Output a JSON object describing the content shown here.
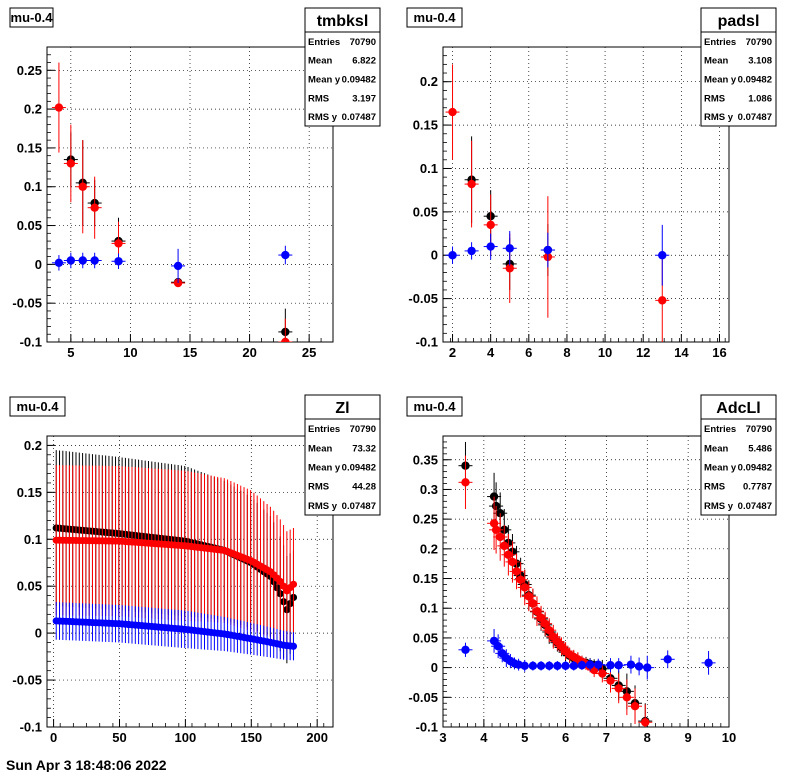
{
  "footer_text": "Sun Apr 3 18:48:06 2022",
  "colors": {
    "black": "#000000",
    "red": "#ff0000",
    "blue": "#0000ff",
    "grid": "#000000"
  },
  "chart_data": [
    {
      "type": "scatter",
      "title": "mu-0.4",
      "stats_name": "tmbksl",
      "stats": [
        {
          "label": "Entries",
          "value": "70790"
        },
        {
          "label": "Mean",
          "value": "6.822"
        },
        {
          "label": "Mean y",
          "value": "0.09482"
        },
        {
          "label": "RMS",
          "value": "3.197"
        },
        {
          "label": "RMS y",
          "value": "0.07487"
        }
      ],
      "xlim": [
        3,
        27
      ],
      "ylim": [
        -0.1,
        0.28
      ],
      "xticks": [
        5,
        10,
        15,
        20,
        25
      ],
      "yticks": [
        -0.1,
        -0.05,
        0,
        0.05,
        0.1,
        0.15,
        0.2,
        0.25
      ],
      "ytick_labels": [
        "-0.1",
        "-0.05",
        "0",
        "0.05",
        "0.1",
        "0.15",
        "0.2",
        "0.25"
      ],
      "grid": true,
      "series": [
        {
          "color": "black",
          "x": [
            5,
            6,
            7,
            9,
            14,
            23
          ],
          "y": [
            0.135,
            0.105,
            0.079,
            0.03,
            -0.023,
            -0.087
          ],
          "err": [
            0.035,
            0.055,
            0.03,
            0.03,
            0.005,
            0.03
          ]
        },
        {
          "color": "red",
          "x": [
            4,
            5,
            6,
            7,
            9,
            14,
            23
          ],
          "y": [
            0.202,
            0.13,
            0.1,
            0.073,
            0.027,
            -0.024,
            -0.1
          ],
          "err": [
            0.058,
            0.05,
            0.06,
            0.04,
            0.028,
            0.005,
            0.03
          ]
        },
        {
          "color": "blue",
          "x": [
            4,
            5,
            6,
            7,
            9,
            14,
            23
          ],
          "y": [
            0.002,
            0.005,
            0.005,
            0.005,
            0.004,
            -0.002,
            0.012
          ],
          "err": [
            0.01,
            0.01,
            0.01,
            0.01,
            0.01,
            0.022,
            0.012
          ]
        }
      ]
    },
    {
      "type": "scatter",
      "title": "mu-0.4",
      "stats_name": "padsl",
      "stats": [
        {
          "label": "Entries",
          "value": "70790"
        },
        {
          "label": "Mean",
          "value": "3.108"
        },
        {
          "label": "Mean y",
          "value": "0.09482"
        },
        {
          "label": "RMS",
          "value": "1.086"
        },
        {
          "label": "RMS y",
          "value": "0.07487"
        }
      ],
      "xlim": [
        1.5,
        16.5
      ],
      "ylim": [
        -0.1,
        0.24
      ],
      "xticks": [
        2,
        4,
        6,
        8,
        10,
        12,
        14,
        16
      ],
      "yticks": [
        -0.1,
        -0.05,
        0,
        0.05,
        0.1,
        0.15,
        0.2
      ],
      "ytick_labels": [
        "-0.1",
        "-0.05",
        "0",
        "0.05",
        "0.1",
        "0.15",
        "0.2"
      ],
      "grid": true,
      "series": [
        {
          "color": "black",
          "x": [
            3,
            4,
            5,
            7
          ],
          "y": [
            0.087,
            0.045,
            -0.01,
            0.006
          ],
          "err": [
            0.05,
            0.03,
            0.03,
            0.03
          ]
        },
        {
          "color": "red",
          "x": [
            2,
            3,
            4,
            5,
            7,
            13
          ],
          "y": [
            0.165,
            0.082,
            0.035,
            -0.015,
            -0.002,
            -0.052
          ],
          "err": [
            0.055,
            0.05,
            0.035,
            0.04,
            0.07,
            0.05
          ]
        },
        {
          "color": "blue",
          "x": [
            2,
            3,
            4,
            5,
            7,
            13
          ],
          "y": [
            0.0,
            0.005,
            0.01,
            0.008,
            0.006,
            0.0
          ],
          "err": [
            0.01,
            0.01,
            0.015,
            0.02,
            0.02,
            0.035
          ]
        }
      ]
    },
    {
      "type": "scatter",
      "title": "mu-0.4",
      "stats_name": "Zl",
      "stats": [
        {
          "label": "Entries",
          "value": "70790"
        },
        {
          "label": "Mean",
          "value": "73.32"
        },
        {
          "label": "Mean y",
          "value": "0.09482"
        },
        {
          "label": "RMS",
          "value": "44.28"
        },
        {
          "label": "RMS y",
          "value": "0.07487"
        }
      ],
      "xlim": [
        -5,
        212
      ],
      "ylim": [
        -0.1,
        0.21
      ],
      "xticks": [
        0,
        50,
        100,
        150,
        200
      ],
      "yticks": [
        -0.1,
        -0.05,
        0,
        0.05,
        0.1,
        0.15,
        0.2
      ],
      "ytick_labels": [
        "-0.1",
        "-0.05",
        "0",
        "0.05",
        "0.1",
        "0.15",
        "0.2"
      ],
      "grid": true,
      "dense": true,
      "series": [
        {
          "color": "black",
          "curve": [
            [
              2,
              0.112
            ],
            [
              50,
              0.106
            ],
            [
              100,
              0.098
            ],
            [
              130,
              0.088
            ],
            [
              150,
              0.075
            ],
            [
              165,
              0.06
            ],
            [
              172,
              0.042
            ],
            [
              177,
              0.025
            ],
            [
              182,
              0.038
            ]
          ],
          "errcurve": [
            [
              2,
              0.083
            ],
            [
              100,
              0.08
            ],
            [
              150,
              0.07
            ],
            [
              175,
              0.06
            ],
            [
              182,
              0.05
            ]
          ],
          "xstep": 2.5
        },
        {
          "color": "red",
          "curve": [
            [
              2,
              0.099
            ],
            [
              50,
              0.098
            ],
            [
              100,
              0.093
            ],
            [
              130,
              0.088
            ],
            [
              150,
              0.077
            ],
            [
              165,
              0.065
            ],
            [
              172,
              0.055
            ],
            [
              177,
              0.045
            ],
            [
              182,
              0.052
            ]
          ],
          "errcurve": [
            [
              2,
              0.08
            ],
            [
              100,
              0.08
            ],
            [
              150,
              0.075
            ],
            [
              175,
              0.065
            ],
            [
              182,
              0.06
            ]
          ],
          "xstep": 2.5
        },
        {
          "color": "blue",
          "curve": [
            [
              2,
              0.013
            ],
            [
              50,
              0.01
            ],
            [
              100,
              0.004
            ],
            [
              130,
              -0.001
            ],
            [
              150,
              -0.006
            ],
            [
              165,
              -0.01
            ],
            [
              175,
              -0.013
            ],
            [
              182,
              -0.014
            ]
          ],
          "errcurve": [
            [
              2,
              0.02
            ],
            [
              100,
              0.02
            ],
            [
              182,
              0.015
            ]
          ],
          "xstep": 2.5
        }
      ]
    },
    {
      "type": "scatter",
      "title": "mu-0.4",
      "stats_name": "AdcLl",
      "stats": [
        {
          "label": "Entries",
          "value": "70790"
        },
        {
          "label": "Mean",
          "value": "5.486"
        },
        {
          "label": "Mean y",
          "value": "0.09482"
        },
        {
          "label": "RMS",
          "value": "0.7787"
        },
        {
          "label": "RMS y",
          "value": "0.07487"
        }
      ],
      "xlim": [
        3,
        10
      ],
      "ylim": [
        -0.1,
        0.39
      ],
      "xticks": [
        3,
        4,
        5,
        6,
        7,
        8,
        9,
        10
      ],
      "yticks": [
        -0.1,
        -0.05,
        0,
        0.05,
        0.1,
        0.15,
        0.2,
        0.25,
        0.3,
        0.35
      ],
      "ytick_labels": [
        "-0.1",
        "-0.05",
        "0",
        "0.05",
        "0.1",
        "0.15",
        "0.2",
        "0.25",
        "0.3",
        "0.35"
      ],
      "grid": true,
      "series": [
        {
          "color": "black",
          "x": [
            3.55,
            4.25,
            4.3,
            4.4,
            4.5,
            4.6,
            4.7,
            4.8,
            4.9,
            5.0,
            5.1,
            5.2,
            5.3,
            5.4,
            5.5,
            5.6,
            5.7,
            5.8,
            5.9,
            6.0,
            6.1,
            6.2,
            6.3,
            6.4,
            6.5,
            6.6,
            6.7,
            6.9,
            7.1,
            7.3,
            7.5,
            7.7,
            7.95
          ],
          "y": [
            0.34,
            0.288,
            0.272,
            0.26,
            0.232,
            0.21,
            0.195,
            0.175,
            0.155,
            0.14,
            0.122,
            0.108,
            0.094,
            0.082,
            0.072,
            0.06,
            0.05,
            0.042,
            0.034,
            0.026,
            0.02,
            0.016,
            0.012,
            0.01,
            0.008,
            0.006,
            0.004,
            -0.002,
            -0.018,
            -0.03,
            -0.04,
            -0.06,
            -0.09
          ],
          "err": [
            0.04,
            0.04,
            0.04,
            0.035,
            0.035,
            0.03,
            0.03,
            0.03,
            0.03,
            0.025,
            0.025,
            0.025,
            0.02,
            0.02,
            0.02,
            0.02,
            0.015,
            0.015,
            0.015,
            0.015,
            0.012,
            0.012,
            0.012,
            0.01,
            0.01,
            0.01,
            0.01,
            0.015,
            0.02,
            0.025,
            0.03,
            0.03,
            0.03
          ]
        },
        {
          "color": "red",
          "x": [
            3.55,
            4.25,
            4.3,
            4.4,
            4.5,
            4.6,
            4.7,
            4.8,
            4.9,
            5.0,
            5.1,
            5.2,
            5.3,
            5.4,
            5.5,
            5.6,
            5.7,
            5.8,
            5.9,
            6.0,
            6.1,
            6.2,
            6.3,
            6.4,
            6.5,
            6.6,
            6.7,
            6.9,
            7.1,
            7.3,
            7.5,
            7.7,
            7.95
          ],
          "y": [
            0.312,
            0.243,
            0.232,
            0.22,
            0.205,
            0.19,
            0.178,
            0.162,
            0.148,
            0.135,
            0.12,
            0.108,
            0.095,
            0.084,
            0.074,
            0.063,
            0.052,
            0.044,
            0.036,
            0.028,
            0.022,
            0.018,
            0.014,
            0.01,
            0.006,
            0.002,
            -0.004,
            -0.01,
            -0.022,
            -0.035,
            -0.05,
            -0.065,
            -0.092
          ],
          "err": [
            0.045,
            0.045,
            0.04,
            0.04,
            0.035,
            0.035,
            0.035,
            0.03,
            0.03,
            0.03,
            0.025,
            0.025,
            0.025,
            0.02,
            0.02,
            0.02,
            0.02,
            0.015,
            0.015,
            0.015,
            0.012,
            0.012,
            0.012,
            0.01,
            0.01,
            0.01,
            0.012,
            0.015,
            0.02,
            0.025,
            0.03,
            0.03,
            0.03
          ]
        },
        {
          "color": "blue",
          "x": [
            3.55,
            4.25,
            4.35,
            4.45,
            4.55,
            4.65,
            4.75,
            4.85,
            5.0,
            5.2,
            5.4,
            5.6,
            5.8,
            6.0,
            6.2,
            6.4,
            6.6,
            6.8,
            7.1,
            7.3,
            7.6,
            7.8,
            8.0,
            8.5,
            9.5
          ],
          "y": [
            0.03,
            0.045,
            0.036,
            0.024,
            0.016,
            0.011,
            0.007,
            0.005,
            0.003,
            0.003,
            0.003,
            0.003,
            0.003,
            0.003,
            0.003,
            0.004,
            0.005,
            0.005,
            0.004,
            0.004,
            0.005,
            0.002,
            0.0,
            0.014,
            0.008
          ],
          "err": [
            0.012,
            0.02,
            0.02,
            0.015,
            0.015,
            0.012,
            0.01,
            0.01,
            0.01,
            0.008,
            0.008,
            0.008,
            0.008,
            0.008,
            0.008,
            0.008,
            0.01,
            0.01,
            0.012,
            0.012,
            0.015,
            0.015,
            0.02,
            0.015,
            0.02
          ]
        }
      ]
    }
  ]
}
